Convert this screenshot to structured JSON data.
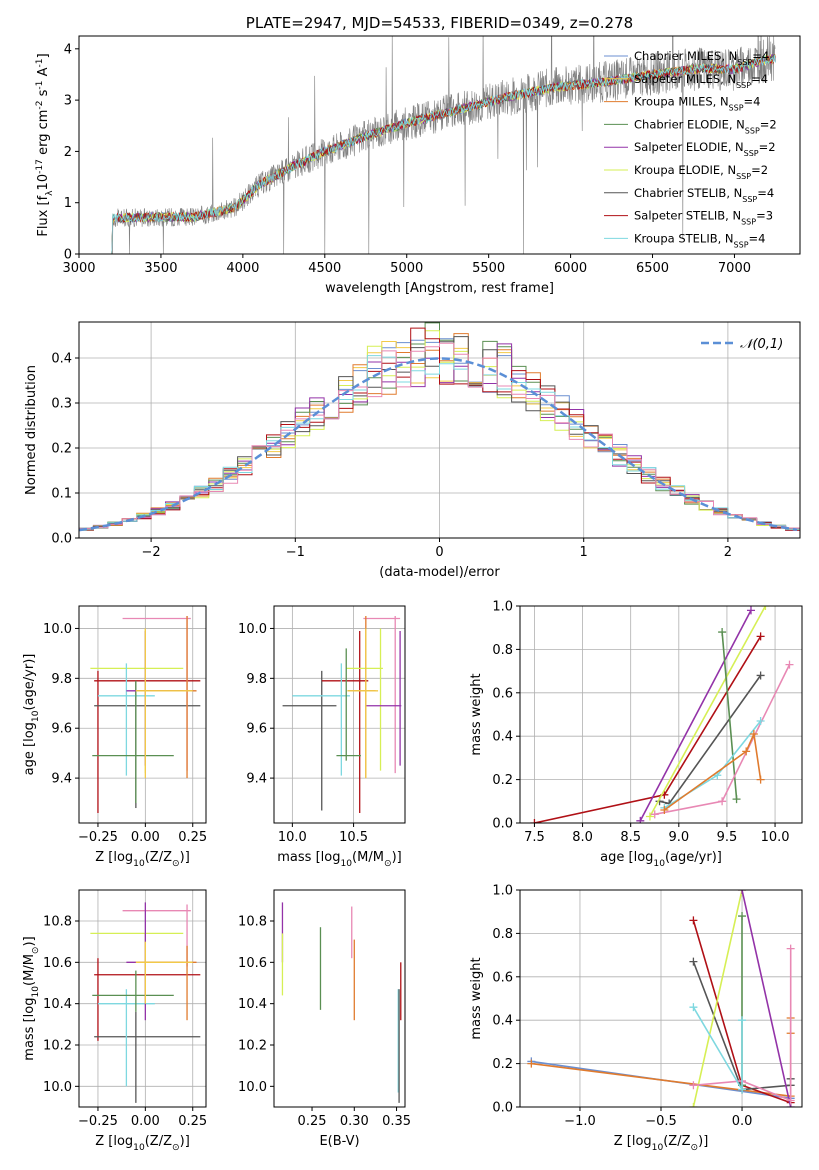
{
  "colors": {
    "chabrier_miles": "#6b8fd0",
    "salpeter_miles": "#f2ca48",
    "kroupa_miles": "#e07b2e",
    "chabrier_elodie": "#5a8f52",
    "salpeter_elodie": "#9333a8",
    "kroupa_elodie": "#d6ef55",
    "chabrier_stelib": "#555555",
    "salpeter_stelib": "#b01016",
    "kroupa_stelib": "#7ed8e0",
    "pink": "#e888b4",
    "data_spectrum": "#808080",
    "gauss": "#5b8fd6"
  },
  "chart_data": [
    {
      "id": "spectrum",
      "type": "line",
      "title": "PLATE=2947, MJD=54533, FIBERID=0349, z=0.278",
      "xlabel": "wavelength [Angstrom, rest frame]",
      "ylabel": "Flux [f$_\\lambda$10$^{-17}$ erg cm$^{-2}$ s$^{-1}$ A$^{-1}$]",
      "xlim": [
        3000,
        7400
      ],
      "ylim": [
        0,
        4.25
      ],
      "xticks": [
        "3000",
        "3500",
        "4000",
        "4500",
        "5000",
        "5500",
        "6000",
        "6500",
        "7000"
      ],
      "yticks": [
        "0",
        "1",
        "2",
        "3",
        "4"
      ],
      "legend_position": "upper-right",
      "legend": [
        {
          "name": "Chabrier MILES, N$_{SSP}$=4",
          "color": "#6b8fd0"
        },
        {
          "name": "Salpeter MILES, N$_{SSP}$=4",
          "color": "#f2ca48"
        },
        {
          "name": "Kroupa MILES, N$_{SSP}$=4",
          "color": "#e07b2e"
        },
        {
          "name": "Chabrier ELODIE, N$_{SSP}$=2",
          "color": "#5a8f52"
        },
        {
          "name": "Salpeter ELODIE, N$_{SSP}$=2",
          "color": "#9333a8"
        },
        {
          "name": "Kroupa ELODIE, N$_{SSP}$=2",
          "color": "#d6ef55"
        },
        {
          "name": "Chabrier STELIB, N$_{SSP}$=4",
          "color": "#555555"
        },
        {
          "name": "Salpeter STELIB, N$_{SSP}$=3",
          "color": "#b01016"
        },
        {
          "name": "Kroupa STELIB, N$_{SSP}$=4",
          "color": "#7ed8e0"
        }
      ],
      "continuum_knots": [
        [
          3200,
          0.7
        ],
        [
          3500,
          0.72
        ],
        [
          3700,
          0.72
        ],
        [
          3950,
          0.9
        ],
        [
          4100,
          1.35
        ],
        [
          4300,
          1.7
        ],
        [
          4500,
          2.0
        ],
        [
          4800,
          2.35
        ],
        [
          5000,
          2.55
        ],
        [
          5300,
          2.8
        ],
        [
          5600,
          3.05
        ],
        [
          5900,
          3.25
        ],
        [
          6200,
          3.35
        ],
        [
          6500,
          3.5
        ],
        [
          6800,
          3.62
        ],
        [
          7000,
          3.6
        ],
        [
          7200,
          3.8
        ]
      ]
    },
    {
      "id": "residuals",
      "type": "histogram",
      "xlabel": "(data-model)/error",
      "ylabel": "Normed distribution",
      "xlim": [
        -2.5,
        2.5
      ],
      "ylim": [
        0,
        0.48
      ],
      "xticks": [
        "−2",
        "−1",
        "0",
        "1",
        "2"
      ],
      "yticks": [
        "0.0",
        "0.1",
        "0.2",
        "0.3",
        "0.4"
      ],
      "grid": true,
      "gauss_label": "$\\mathcal{N}(0,1)$",
      "bin_width": 0.1
    },
    {
      "id": "age_vs_Z",
      "type": "errorbar",
      "xlabel": "Z [log$_{10}$(Z/Z$_\\odot$)]",
      "ylabel": "age  [log$_{10}$(age/yr)]",
      "xlim": [
        -0.35,
        0.32
      ],
      "ylim": [
        9.22,
        10.09
      ],
      "xticks": [
        "−0.25",
        "0.00",
        "0.25"
      ],
      "yticks": [
        "9.4",
        "9.6",
        "9.8",
        "10.0"
      ],
      "grid": true,
      "points": [
        {
          "c": "#b01016",
          "x": -0.25,
          "y": 9.79,
          "xl": -0.27,
          "xh": 0.29,
          "yl": 9.26,
          "yh": 9.83
        },
        {
          "c": "#555555",
          "x": -0.05,
          "y": 9.69,
          "xl": -0.27,
          "xh": 0.29,
          "yl": 9.28,
          "yh": 9.79
        },
        {
          "c": "#d6ef55",
          "x": 0.0,
          "y": 9.84,
          "xl": -0.29,
          "xh": 0.2,
          "yl": 9.42,
          "yh": 10.0
        },
        {
          "c": "#e888b4",
          "x": 0.22,
          "y": 10.04,
          "xl": -0.12,
          "xh": 0.24,
          "yl": 9.43,
          "yh": 10.05
        },
        {
          "c": "#7ed8e0",
          "x": -0.1,
          "y": 9.73,
          "xl": -0.25,
          "xh": 0.05,
          "yl": 9.41,
          "yh": 9.86
        },
        {
          "c": "#5a8f52",
          "x": -0.05,
          "y": 9.49,
          "xl": -0.28,
          "xh": 0.15,
          "yl": 9.3,
          "yh": 9.79
        },
        {
          "c": "#9333a8",
          "x": 0.0,
          "y": 9.75,
          "xl": -0.1,
          "xh": 0.2,
          "yl": 9.45,
          "yh": 9.99
        },
        {
          "c": "#e07b2e",
          "x": 0.22,
          "y": 9.75,
          "xl": -0.05,
          "xh": 0.27,
          "yl": 9.4,
          "yh": 10.05
        },
        {
          "c": "#f2ca48",
          "x": 0.0,
          "y": 9.75,
          "xl": -0.05,
          "xh": 0.25,
          "yl": 9.4,
          "yh": 10.0
        }
      ]
    },
    {
      "id": "age_vs_mass",
      "type": "errorbar",
      "xlabel": "mass [log$_{10}$(M/M$_\\odot$)]",
      "ylabel": "",
      "xlim": [
        9.85,
        10.92
      ],
      "ylim": [
        9.22,
        10.09
      ],
      "xticks": [
        "10.0",
        "10.5"
      ],
      "yticks": [
        "9.4",
        "9.6",
        "9.8",
        "10.0"
      ],
      "grid": true,
      "points": [
        {
          "c": "#555555",
          "x": 10.24,
          "y": 9.69,
          "xl": 9.92,
          "xh": 10.36,
          "yl": 9.27,
          "yh": 9.83
        },
        {
          "c": "#b01016",
          "x": 10.55,
          "y": 9.79,
          "xl": 10.24,
          "xh": 10.62,
          "yl": 9.26,
          "yh": 9.99
        },
        {
          "c": "#d6ef55",
          "x": 10.72,
          "y": 9.84,
          "xl": 10.44,
          "xh": 10.74,
          "yl": 9.43,
          "yh": 10.0
        },
        {
          "c": "#e888b4",
          "x": 10.84,
          "y": 10.04,
          "xl": 10.58,
          "xh": 10.88,
          "yl": 9.42,
          "yh": 10.05
        },
        {
          "c": "#7ed8e0",
          "x": 10.4,
          "y": 9.73,
          "xl": 10.0,
          "xh": 10.47,
          "yl": 9.41,
          "yh": 9.86
        },
        {
          "c": "#5a8f52",
          "x": 10.44,
          "y": 9.49,
          "xl": 10.36,
          "xh": 10.56,
          "yl": 9.47,
          "yh": 9.92
        },
        {
          "c": "#9333a8",
          "x": 10.88,
          "y": 9.69,
          "xl": 10.6,
          "xh": 10.89,
          "yl": 9.45,
          "yh": 9.99
        },
        {
          "c": "#e07b2e",
          "x": 10.6,
          "y": 9.75,
          "xl": 10.45,
          "xh": 10.68,
          "yl": 9.4,
          "yh": 10.05
        },
        {
          "c": "#f2ca48",
          "x": 10.6,
          "y": 9.75,
          "xl": 10.45,
          "xh": 10.7,
          "yl": 9.4,
          "yh": 10.0
        }
      ]
    },
    {
      "id": "weight_vs_age",
      "type": "line",
      "xlabel": "age  [log$_{10}$(age/yr)]",
      "ylabel": "mass weight",
      "xlim": [
        7.35,
        10.28
      ],
      "ylim": [
        0,
        1
      ],
      "xticks": [
        "7.5",
        "8.0",
        "8.5",
        "9.0",
        "9.5",
        "10.0"
      ],
      "yticks": [
        "0.0",
        "0.2",
        "0.4",
        "0.6",
        "0.8",
        "1.0"
      ],
      "grid": true,
      "series": [
        {
          "c": "#b01016",
          "pts": [
            [
              7.5,
              0.0
            ],
            [
              8.85,
              0.13
            ],
            [
              9.85,
              0.86
            ]
          ]
        },
        {
          "c": "#555555",
          "pts": [
            [
              8.8,
              0.1
            ],
            [
              8.9,
              0.09
            ],
            [
              9.85,
              0.68
            ]
          ]
        },
        {
          "c": "#9333a8",
          "pts": [
            [
              8.6,
              0.01
            ],
            [
              9.75,
              0.98
            ]
          ]
        },
        {
          "c": "#d6ef55",
          "pts": [
            [
              8.7,
              0.03
            ],
            [
              9.9,
              1.0
            ]
          ]
        },
        {
          "c": "#5a8f52",
          "pts": [
            [
              9.45,
              0.88
            ],
            [
              9.6,
              0.11
            ]
          ]
        },
        {
          "c": "#e888b4",
          "pts": [
            [
              8.75,
              0.04
            ],
            [
              9.45,
              0.1
            ],
            [
              10.15,
              0.73
            ]
          ]
        },
        {
          "c": "#7ed8e0",
          "pts": [
            [
              8.85,
              0.07
            ],
            [
              9.4,
              0.22
            ],
            [
              9.85,
              0.47
            ]
          ]
        },
        {
          "c": "#e07b2e",
          "pts": [
            [
              8.85,
              0.06
            ],
            [
              9.7,
              0.33
            ],
            [
              9.78,
              0.41
            ],
            [
              9.85,
              0.2
            ]
          ]
        }
      ]
    },
    {
      "id": "mass_vs_Z",
      "type": "errorbar",
      "xlabel": "Z [log$_{10}$(Z/Z$_\\odot$)]",
      "ylabel": "mass [log$_{10}$(M/M$_\\odot$)]",
      "xlim": [
        -0.35,
        0.32
      ],
      "ylim": [
        9.9,
        10.95
      ],
      "xticks": [
        "−0.25",
        "0.00",
        "0.25"
      ],
      "yticks": [
        "10.0",
        "10.2",
        "10.4",
        "10.6",
        "10.8"
      ],
      "grid": true,
      "points": [
        {
          "c": "#b01016",
          "x": -0.25,
          "y": 10.54,
          "xl": -0.27,
          "xh": 0.29,
          "yl": 10.22,
          "yh": 10.62
        },
        {
          "c": "#555555",
          "x": -0.05,
          "y": 10.24,
          "xl": -0.27,
          "xh": 0.29,
          "yl": 9.92,
          "yh": 10.36
        },
        {
          "c": "#d6ef55",
          "x": 0.0,
          "y": 10.74,
          "xl": -0.29,
          "xh": 0.2,
          "yl": 10.44,
          "yh": 10.74
        },
        {
          "c": "#e888b4",
          "x": 0.22,
          "y": 10.85,
          "xl": -0.12,
          "xh": 0.24,
          "yl": 10.58,
          "yh": 10.88
        },
        {
          "c": "#7ed8e0",
          "x": -0.1,
          "y": 10.4,
          "xl": -0.25,
          "xh": 0.05,
          "yl": 10.0,
          "yh": 10.47
        },
        {
          "c": "#5a8f52",
          "x": -0.05,
          "y": 10.44,
          "xl": -0.28,
          "xh": 0.15,
          "yl": 10.36,
          "yh": 10.56
        },
        {
          "c": "#9333a8",
          "x": 0.0,
          "y": 10.6,
          "xl": -0.1,
          "xh": 0.2,
          "yl": 10.32,
          "yh": 10.89
        },
        {
          "c": "#e07b2e",
          "x": 0.22,
          "y": 10.6,
          "xl": -0.05,
          "xh": 0.27,
          "yl": 10.32,
          "yh": 10.68
        },
        {
          "c": "#f2ca48",
          "x": 0.0,
          "y": 10.6,
          "xl": -0.05,
          "xh": 0.25,
          "yl": 10.4,
          "yh": 10.7
        }
      ]
    },
    {
      "id": "mass_vs_ebv",
      "type": "errorbar",
      "xlabel": "E(B-V)",
      "ylabel": "",
      "xlim": [
        0.205,
        0.36
      ],
      "ylim": [
        9.9,
        10.95
      ],
      "xticks": [
        "0.25",
        "0.30",
        "0.35"
      ],
      "yticks": [
        "10.0",
        "10.2",
        "10.4",
        "10.6",
        "10.8"
      ],
      "grid": false,
      "points": [
        {
          "c": "#9333a8",
          "x": 0.215,
          "y": 10.74,
          "yl": 10.6,
          "yh": 10.89
        },
        {
          "c": "#d6ef55",
          "x": 0.215,
          "y": 10.6,
          "yl": 10.44,
          "yh": 10.74
        },
        {
          "c": "#5a8f52",
          "x": 0.26,
          "y": 10.57,
          "yl": 10.37,
          "yh": 10.77
        },
        {
          "c": "#e888b4",
          "x": 0.297,
          "y": 10.75,
          "yl": 10.62,
          "yh": 10.87
        },
        {
          "c": "#e07b2e",
          "x": 0.3,
          "y": 10.5,
          "yl": 10.32,
          "yh": 10.71
        },
        {
          "c": "#7ed8e0",
          "x": 0.352,
          "y": 10.2,
          "yl": 9.97,
          "yh": 10.47
        },
        {
          "c": "#555555",
          "x": 0.353,
          "y": 10.24,
          "yl": 9.92,
          "yh": 10.47
        },
        {
          "c": "#b01016",
          "x": 0.355,
          "y": 10.46,
          "yl": 10.32,
          "yh": 10.6
        }
      ]
    },
    {
      "id": "weight_vs_Z",
      "type": "line",
      "xlabel": "Z [log$_{10}$(Z/Z$_\\odot$)]",
      "ylabel": "mass weight",
      "xlim": [
        -1.37,
        0.37
      ],
      "ylim": [
        0,
        1
      ],
      "xticks": [
        "−1.0",
        "−0.5",
        "0.0"
      ],
      "yticks": [
        "0.0",
        "0.2",
        "0.4",
        "0.6",
        "0.8",
        "1.0"
      ],
      "grid": true,
      "series": [
        {
          "c": "#6b8fd0",
          "pts": [
            [
              -1.3,
              0.21
            ],
            [
              0.3,
              0.04
            ]
          ]
        },
        {
          "c": "#e07b2e",
          "pts": [
            [
              -1.3,
              0.2
            ],
            [
              0.3,
              0.05
            ],
            [
              0.3,
              0.34
            ],
            [
              0.3,
              0.41
            ]
          ]
        },
        {
          "c": "#b01016",
          "pts": [
            [
              -0.3,
              0.86
            ],
            [
              0.0,
              0.1
            ],
            [
              0.3,
              0.02
            ]
          ]
        },
        {
          "c": "#555555",
          "pts": [
            [
              -0.3,
              0.67
            ],
            [
              0.0,
              0.08
            ],
            [
              0.3,
              0.1
            ],
            [
              0.3,
              0.13
            ]
          ]
        },
        {
          "c": "#d6ef55",
          "pts": [
            [
              -0.3,
              0.0
            ],
            [
              0.0,
              1.0
            ]
          ]
        },
        {
          "c": "#9333a8",
          "pts": [
            [
              0.0,
              1.0
            ],
            [
              0.3,
              0.0
            ]
          ]
        },
        {
          "c": "#5a8f52",
          "pts": [
            [
              0.0,
              0.88
            ],
            [
              0.0,
              0.1
            ]
          ]
        },
        {
          "c": "#e888b4",
          "pts": [
            [
              -0.3,
              0.1
            ],
            [
              0.0,
              0.12
            ],
            [
              0.3,
              0.03
            ],
            [
              0.3,
              0.73
            ]
          ]
        },
        {
          "c": "#7ed8e0",
          "pts": [
            [
              -0.3,
              0.46
            ],
            [
              0.0,
              0.08
            ],
            [
              0.0,
              0.4
            ]
          ]
        }
      ]
    }
  ]
}
